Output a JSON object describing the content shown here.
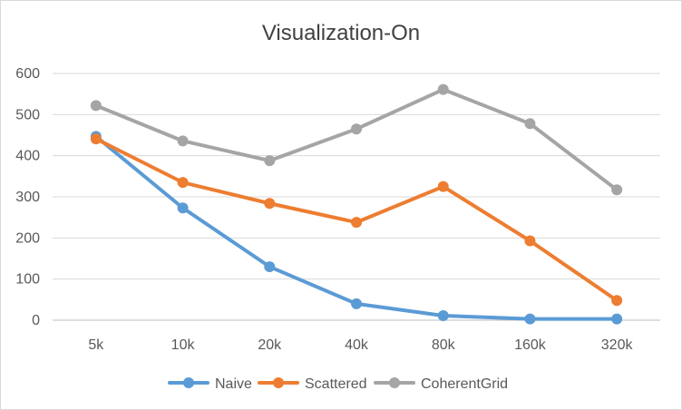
{
  "chart_data": {
    "type": "line",
    "title": "Visualization-On",
    "xlabel": "",
    "ylabel": "",
    "categories": [
      "5k",
      "10k",
      "20k",
      "40k",
      "80k",
      "160k",
      "320k"
    ],
    "ylim": [
      0,
      600
    ],
    "yticks": [
      0,
      100,
      200,
      300,
      400,
      500,
      600
    ],
    "grid": true,
    "legend_position": "bottom",
    "series": [
      {
        "name": "Naive",
        "color": "#5b9bd5",
        "values": [
          447,
          273,
          130,
          40,
          11,
          3,
          3
        ]
      },
      {
        "name": "Scattered",
        "color": "#ed7d31",
        "values": [
          441,
          335,
          284,
          238,
          325,
          193,
          48
        ]
      },
      {
        "name": "CoherentGrid",
        "color": "#a5a5a5",
        "values": [
          522,
          436,
          388,
          465,
          561,
          478,
          317
        ]
      }
    ]
  }
}
